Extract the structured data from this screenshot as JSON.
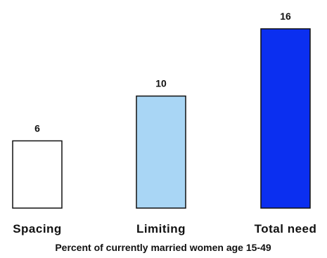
{
  "chart_data": {
    "type": "bar",
    "categories": [
      "Spacing",
      "Limiting",
      "Total need"
    ],
    "values": [
      6,
      10,
      16
    ],
    "value_labels": [
      "6",
      "10",
      "16"
    ],
    "xlabel": "Percent of currently married women age 15-49",
    "ylabel": "",
    "ylim": [
      0,
      16
    ],
    "grid": false,
    "legend": "none",
    "colors": [
      "#ffffff",
      "#a9d6f5",
      "#0b2ff0"
    ],
    "edge_color": "#111111"
  }
}
